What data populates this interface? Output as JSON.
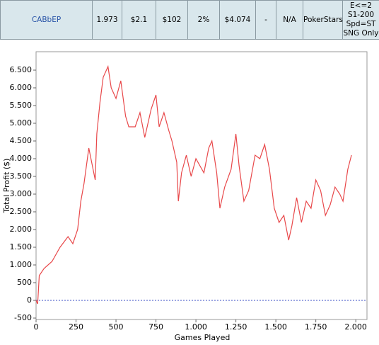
{
  "table": {
    "row": [
      "CABbEP",
      "1.973",
      "$2.1",
      "$102",
      "2%",
      "$4.074",
      "-",
      "N/A",
      "PokerStars"
    ],
    "filter_lines": [
      "E<=2",
      "S1-200",
      "Spd=ST",
      "SNG Only"
    ]
  },
  "chart_data": {
    "type": "line",
    "xlabel": "Games Played",
    "ylabel": "Total Profit ($)",
    "x": [
      0,
      10,
      20,
      50,
      100,
      150,
      200,
      230,
      260,
      280,
      300,
      330,
      370,
      380,
      400,
      420,
      450,
      470,
      500,
      530,
      560,
      580,
      620,
      650,
      680,
      720,
      750,
      770,
      800,
      830,
      850,
      880,
      890,
      910,
      940,
      970,
      1000,
      1050,
      1080,
      1100,
      1130,
      1150,
      1180,
      1220,
      1250,
      1270,
      1300,
      1330,
      1370,
      1400,
      1430,
      1460,
      1490,
      1520,
      1550,
      1580,
      1600,
      1630,
      1660,
      1690,
      1720,
      1750,
      1780,
      1810,
      1840,
      1870,
      1900,
      1920,
      1950,
      1973
    ],
    "series": [
      {
        "name": "Total Profit",
        "color": "#e8484a",
        "values": [
          0,
          -100,
          700,
          900,
          1100,
          1500,
          1800,
          1600,
          2000,
          2800,
          3300,
          4300,
          3400,
          4700,
          5600,
          6300,
          6600,
          6000,
          5700,
          6200,
          5200,
          4900,
          4900,
          5300,
          4600,
          5400,
          5800,
          4900,
          5300,
          4800,
          4500,
          3900,
          2800,
          3600,
          4100,
          3500,
          4000,
          3600,
          4300,
          4500,
          3600,
          2600,
          3200,
          3700,
          4700,
          3800,
          2800,
          3100,
          4100,
          4000,
          4400,
          3700,
          2600,
          2200,
          2400,
          1700,
          2100,
          2900,
          2200,
          2800,
          2600,
          3400,
          3100,
          2400,
          2700,
          3200,
          3000,
          2800,
          3700,
          4100
        ]
      }
    ],
    "xlim": [
      0,
      2070
    ],
    "ylim": [
      -540,
      7020
    ],
    "xticks": [
      0,
      250,
      500,
      {
        "value": 750,
        "label": "750"
      },
      {
        "value": 1000,
        "label": "1.000"
      },
      {
        "value": 1250,
        "label": "1.250"
      },
      {
        "value": 1500,
        "label": "1.500"
      },
      {
        "value": 1750,
        "label": "1.750"
      },
      {
        "value": 2000,
        "label": "2.000"
      }
    ],
    "yticks": [
      {
        "value": -500,
        "label": "-500"
      },
      0,
      500,
      {
        "value": 1000,
        "label": "1.000"
      },
      {
        "value": 1500,
        "label": "1.500"
      },
      {
        "value": 2000,
        "label": "2.000"
      },
      {
        "value": 2500,
        "label": "2.500"
      },
      {
        "value": 3000,
        "label": "3.000"
      },
      {
        "value": 3500,
        "label": "3.500"
      },
      {
        "value": 4000,
        "label": "4.000"
      },
      {
        "value": 4500,
        "label": "4.500"
      },
      {
        "value": 5000,
        "label": "5.000"
      },
      {
        "value": 5500,
        "label": "5.500"
      },
      {
        "value": 6000,
        "label": "6.000"
      },
      {
        "value": 6500,
        "label": "6.500"
      }
    ],
    "zero_line_color": "#3b4fc4"
  }
}
